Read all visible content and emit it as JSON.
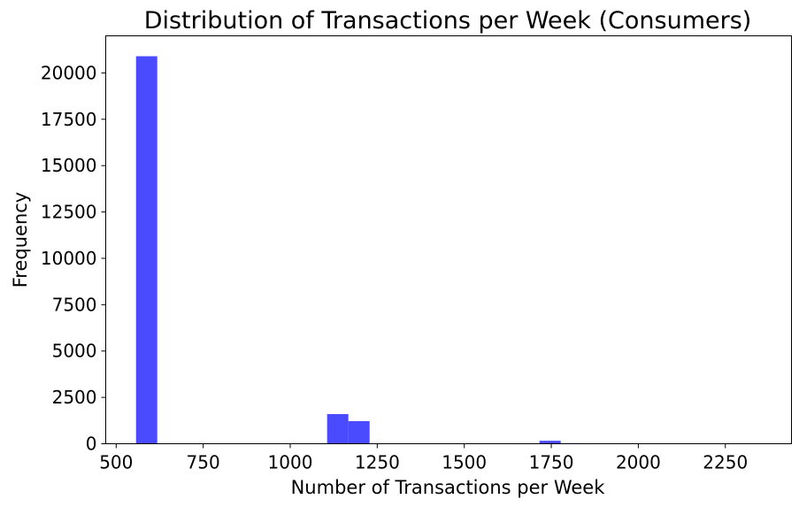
{
  "chart_data": {
    "type": "bar",
    "title": "Distribution of Transactions per Week (Consumers)",
    "xlabel": "Number of Transactions per Week",
    "ylabel": "Frequency",
    "xlim": [
      470,
      2440
    ],
    "ylim": [
      0,
      22000
    ],
    "xticks": [
      500,
      750,
      1000,
      1250,
      1500,
      1750,
      2000,
      2250
    ],
    "yticks": [
      0,
      2500,
      5000,
      7500,
      10000,
      12500,
      15000,
      17500,
      20000
    ],
    "bin_width": 61,
    "bins": [
      {
        "x0": 557,
        "x1": 618,
        "value": 20900
      },
      {
        "x0": 1106,
        "x1": 1167,
        "value": 1600
      },
      {
        "x0": 1167,
        "x1": 1228,
        "value": 1220
      },
      {
        "x0": 1655,
        "x1": 1716,
        "value": 25
      },
      {
        "x0": 1716,
        "x1": 1777,
        "value": 160
      },
      {
        "x0": 1777,
        "x1": 1838,
        "value": 30
      },
      {
        "x0": 2265,
        "x1": 2326,
        "value": 15
      },
      {
        "x0": 2326,
        "x1": 2387,
        "value": 15
      }
    ],
    "bar_color": "#4a4aff",
    "grid": false,
    "legend": "none"
  }
}
